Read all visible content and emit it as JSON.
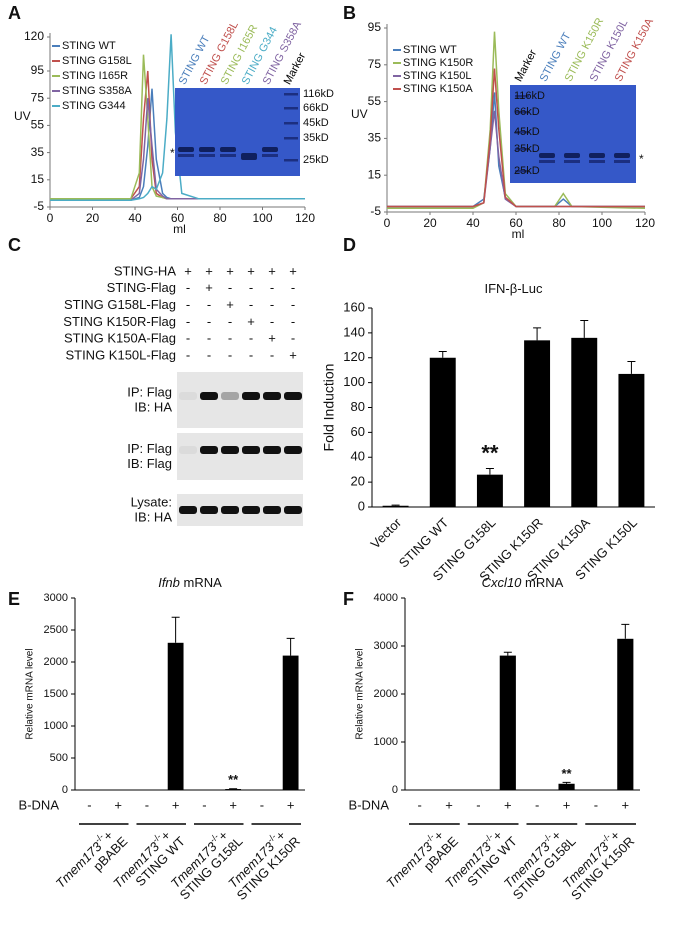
{
  "panel_letters": [
    "A",
    "B",
    "C",
    "D",
    "E",
    "F"
  ],
  "chart_data": [
    {
      "type": "line",
      "xlabel": "ml",
      "ylabel": "UV",
      "x": [
        0,
        38,
        42,
        44,
        46,
        48,
        50,
        53,
        55,
        57,
        59,
        62,
        70,
        120
      ],
      "xlim": [
        0,
        120
      ],
      "xticks": [
        0,
        20,
        40,
        60,
        80,
        100,
        120
      ],
      "ylim": [
        -5,
        120
      ],
      "yticks": [
        -5,
        15,
        35,
        55,
        75,
        95,
        120
      ],
      "series": [
        {
          "name": "STING WT",
          "color": "#4a7ebb",
          "values": [
            0,
            0,
            2,
            10,
            40,
            82,
            30,
            5,
            2,
            1,
            1,
            1,
            1,
            1
          ]
        },
        {
          "name": "STING G158L",
          "color": "#c0504d",
          "values": [
            1,
            1,
            10,
            60,
            95,
            30,
            5,
            2,
            1,
            1,
            1,
            1,
            1,
            1
          ]
        },
        {
          "name": "STING I165R",
          "color": "#9bbb59",
          "values": [
            1,
            1,
            20,
            107,
            60,
            10,
            3,
            2,
            1,
            1,
            1,
            1,
            1,
            1
          ]
        },
        {
          "name": "STING S358A",
          "color": "#8064a2",
          "values": [
            0,
            0,
            5,
            30,
            75,
            40,
            8,
            3,
            1,
            1,
            1,
            1,
            1,
            1
          ]
        },
        {
          "name": "STING G344",
          "color": "#4bacc6",
          "values": [
            0,
            0,
            1,
            2,
            5,
            10,
            8,
            20,
            60,
            122,
            50,
            5,
            1,
            1
          ]
        }
      ]
    },
    {
      "type": "line",
      "xlabel": "ml",
      "ylabel": "UV",
      "x": [
        0,
        40,
        45,
        48,
        50,
        52,
        55,
        60,
        78,
        82,
        86,
        120
      ],
      "xlim": [
        0,
        120
      ],
      "xticks": [
        0,
        20,
        40,
        60,
        80,
        100,
        120
      ],
      "ylim": [
        -5,
        95
      ],
      "yticks": [
        -5,
        15,
        35,
        55,
        75,
        95
      ],
      "series": [
        {
          "name": "STING WT",
          "color": "#4a7ebb",
          "values": [
            -2,
            -2,
            2,
            30,
            60,
            20,
            3,
            -2,
            -2,
            2,
            -2,
            -2
          ]
        },
        {
          "name": "STING K150R",
          "color": "#9bbb59",
          "values": [
            -3,
            -3,
            0,
            40,
            93,
            50,
            5,
            -2,
            -2,
            5,
            -2,
            -3
          ]
        },
        {
          "name": "STING K150L",
          "color": "#8064a2",
          "values": [
            -2,
            -2,
            0,
            30,
            50,
            25,
            2,
            -2,
            -2,
            -2,
            -2,
            -2
          ]
        },
        {
          "name": "STING K150A",
          "color": "#c0504d",
          "values": [
            -2,
            -2,
            0,
            35,
            73,
            40,
            3,
            -2,
            -2,
            -2,
            -2,
            -2
          ]
        }
      ]
    },
    {
      "type": "bar",
      "title": "IFN-β-Luc",
      "ylabel": "Fold Induction",
      "annotation": "**",
      "categories": [
        "Vector",
        "STING WT",
        "STING G158L",
        "STING K150R",
        "STING K150A",
        "STING K150L"
      ],
      "values": [
        1,
        120,
        26,
        134,
        136,
        107
      ],
      "errors": [
        0.5,
        5,
        5,
        10,
        14,
        10
      ],
      "color": "#000000",
      "ylim": [
        0,
        160
      ],
      "yticks": [
        0,
        20,
        40,
        60,
        80,
        100,
        120,
        140,
        160
      ]
    },
    {
      "type": "bar",
      "title_gene": "Ifnb",
      "title": " mRNA",
      "ylabel": "Relative mRNA level",
      "annotation": "**",
      "category_row_label": "B-DNA",
      "categories": [
        "-",
        "+",
        "-",
        "+",
        "-",
        "+",
        "-",
        "+"
      ],
      "values": [
        0,
        0,
        0,
        2300,
        0,
        15,
        0,
        2100
      ],
      "errors": [
        0,
        0,
        0,
        400,
        0,
        5,
        0,
        270
      ],
      "color": "#000000",
      "ylim": [
        0,
        3000
      ],
      "yticks": [
        0,
        500,
        1000,
        1500,
        2000,
        2500,
        3000
      ],
      "group_prefix": {
        "gene": "Tmem173",
        "sup": "-/-",
        "suffix": "+"
      },
      "groups": [
        "pBABE",
        "STING WT",
        "STING G158L",
        "STING K150R"
      ]
    },
    {
      "type": "bar",
      "title_gene": "Cxcl10",
      "title": " mRNA",
      "ylabel": "Relative mRNA level",
      "annotation": "**",
      "category_row_label": "B-DNA",
      "categories": [
        "-",
        "+",
        "-",
        "+",
        "-",
        "+",
        "-",
        "+"
      ],
      "values": [
        0,
        0,
        0,
        2800,
        0,
        130,
        0,
        3150
      ],
      "errors": [
        0,
        0,
        0,
        70,
        0,
        30,
        0,
        300
      ],
      "color": "#000000",
      "ylim": [
        0,
        4000
      ],
      "yticks": [
        0,
        1000,
        2000,
        3000,
        4000
      ],
      "group_prefix": {
        "gene": "Tmem173",
        "sup": "-/-",
        "suffix": "+"
      },
      "groups": [
        "pBABE",
        "STING WT",
        "STING G158L",
        "STING K150R"
      ]
    }
  ],
  "gels": [
    {
      "lanes": [
        "STING WT",
        "STING G158L",
        "STING I165R",
        "STING G344",
        "STING S358A",
        "Marker"
      ],
      "lane_colors": [
        "#4a7ebb",
        "#c0504d",
        "#9bbb59",
        "#4bacc6",
        "#8064a2",
        "#000000"
      ],
      "markers": [
        "116kD",
        "66kD",
        "45kD",
        "35kD",
        "25kD"
      ],
      "asterisk": "*"
    },
    {
      "lanes": [
        "Marker",
        "STING WT",
        "STING K150R",
        "STING K150L",
        "STING K150A"
      ],
      "lane_colors": [
        "#000000",
        "#4a7ebb",
        "#9bbb59",
        "#8064a2",
        "#c0504d"
      ],
      "markers": [
        "116kD",
        "66kD",
        "45kD",
        "35kD",
        "25kD"
      ],
      "asterisk": "*"
    }
  ],
  "blot": {
    "row_labels": [
      "STING-HA",
      "STING-Flag",
      "STING G158L-Flag",
      "STING K150R-Flag",
      "STING K150A-Flag",
      "STING K150L-Flag"
    ],
    "signs": [
      [
        "+",
        "+",
        "+",
        "+",
        "+",
        "+"
      ],
      [
        "-",
        "+",
        "-",
        "-",
        "-",
        "-"
      ],
      [
        "-",
        "-",
        "+",
        "-",
        "-",
        "-"
      ],
      [
        "-",
        "-",
        "-",
        "+",
        "-",
        "-"
      ],
      [
        "-",
        "-",
        "-",
        "-",
        "+",
        "-"
      ],
      [
        "-",
        "-",
        "-",
        "-",
        "-",
        "+"
      ]
    ],
    "panels": [
      [
        "IP: Flag",
        "IB: HA"
      ],
      [
        "IP: Flag",
        "IB: Flag"
      ],
      [
        "Lysate:",
        "IB: HA"
      ]
    ]
  }
}
